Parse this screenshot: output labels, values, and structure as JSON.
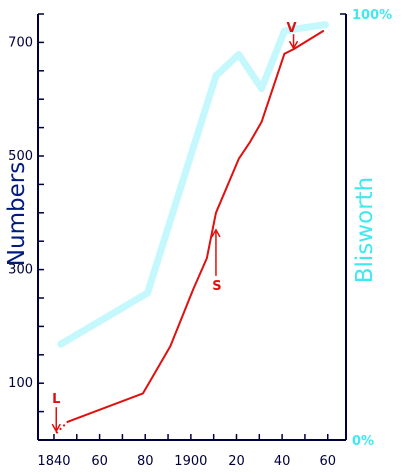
{
  "chart_data": {
    "type": "line",
    "xlabel": "",
    "ylabel": "Numbers",
    "ylabel_right": "Blisworth",
    "x_tick_labels": [
      "1840",
      "60",
      "80",
      "1900",
      "20",
      "40",
      "60"
    ],
    "x_tick_values": [
      1840,
      1860,
      1880,
      1900,
      1920,
      1940,
      1960
    ],
    "xlim": [
      1833,
      1968
    ],
    "y_tick_labels": [
      "100",
      "300",
      "500",
      "700"
    ],
    "y_tick_values": [
      100,
      300,
      500,
      700
    ],
    "ylim": [
      0,
      750
    ],
    "y_right_tick_labels": [
      "0%",
      "100%"
    ],
    "y_right_tick_values": [
      0,
      100
    ],
    "y_right_lim": [
      0,
      100
    ],
    "grid": false,
    "series": [
      {
        "color": "#e01010",
        "axis": "left",
        "dotted_start": {
          "x": [
            1841,
            1846
          ],
          "y": [
            12,
            32
          ]
        },
        "x": [
          1846,
          1879,
          1891,
          1901,
          1907,
          1911,
          1921,
          1926,
          1931,
          1941,
          1945,
          1958
        ],
        "y": [
          32,
          82,
          165,
          265,
          320,
          400,
          495,
          525,
          560,
          680,
          688,
          720
        ]
      },
      {
        "color": "#c4f8fc",
        "axis": "right",
        "x": [
          1843,
          1881,
          1911,
          1921,
          1931,
          1941,
          1946,
          1959
        ],
        "y": [
          22.5,
          34.5,
          85.5,
          90.5,
          82.5,
          96,
          96.5,
          97.5
        ]
      }
    ],
    "annotations": [
      {
        "text": "L",
        "x": 1841,
        "y": 12
      },
      {
        "text": "S",
        "x": 1911,
        "y": 370
      },
      {
        "text": "V",
        "x": 1945,
        "y": 688
      }
    ]
  }
}
